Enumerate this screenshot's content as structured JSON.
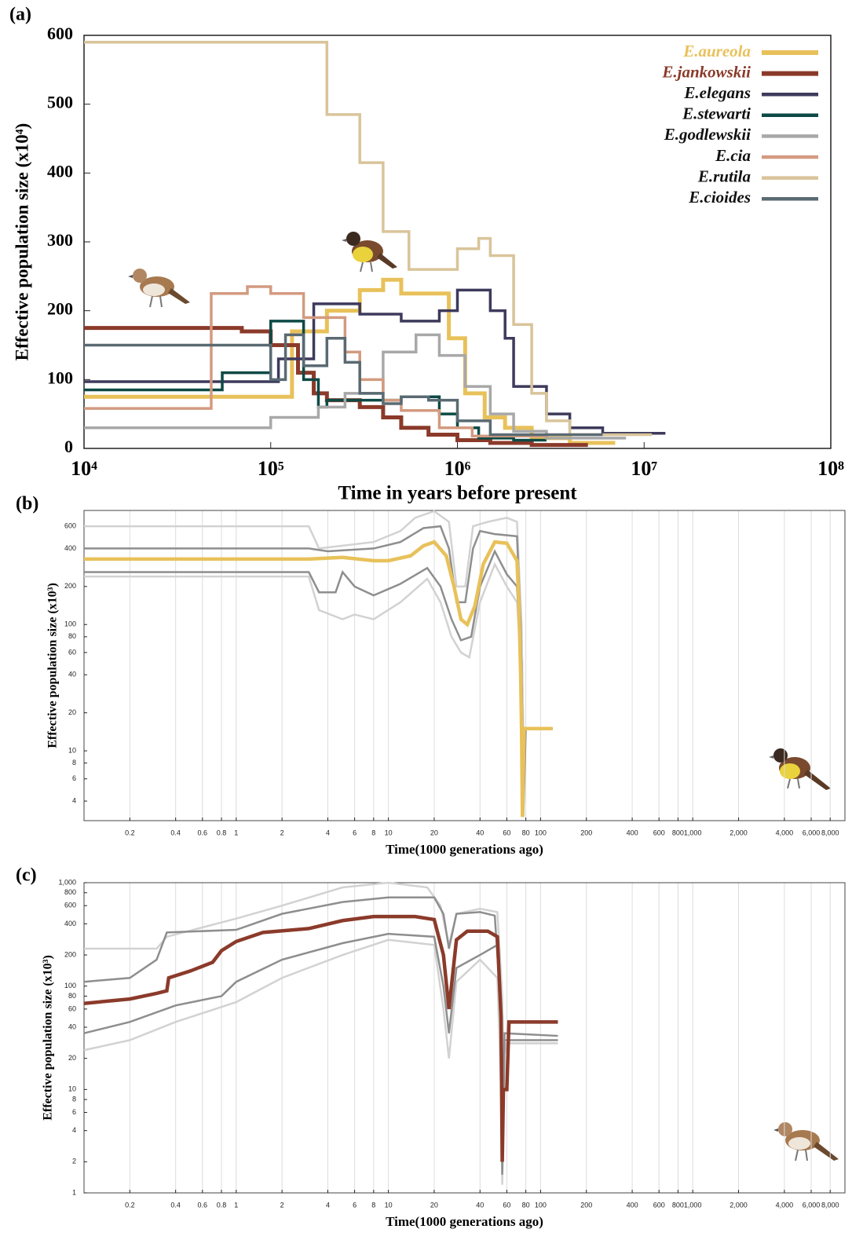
{
  "chart_data": [
    {
      "type": "step",
      "panel_label": "(a)",
      "x_label": "Time in years before present",
      "y_label": "Effective population size (x10⁴)",
      "x_scale": "log",
      "xlim": [
        10000,
        100000000
      ],
      "xticks": [
        {
          "value": 10000,
          "label": "10⁴"
        },
        {
          "value": 100000,
          "label": "10⁵"
        },
        {
          "value": 1000000,
          "label": "10⁶"
        },
        {
          "value": 10000000,
          "label": "10⁷"
        },
        {
          "value": 100000000,
          "label": "10⁸"
        }
      ],
      "ylim": [
        0,
        600
      ],
      "yticks": [
        0,
        100,
        200,
        300,
        400,
        500,
        600
      ],
      "grid": false,
      "legend": "upper right",
      "series": [
        {
          "name": "E.aureola",
          "color": "#e8c15a",
          "label_color": "#e8c15a",
          "width": 5,
          "x": [
            10000,
            130000,
            200000,
            300000,
            400000,
            500000,
            900000,
            1100000,
            1400000,
            1800000,
            2500000,
            4000000,
            7000000
          ],
          "values": [
            75,
            170,
            200,
            230,
            245,
            225,
            160,
            80,
            45,
            30,
            15,
            8,
            8
          ]
        },
        {
          "name": "E.jankowskii",
          "color": "#8b3a2a",
          "label_color": "#8b3a2a",
          "width": 5,
          "x": [
            10000,
            70000,
            100000,
            140000,
            170000,
            200000,
            300000,
            400000,
            500000,
            700000,
            1000000,
            1500000,
            2500000,
            5000000
          ],
          "values": [
            175,
            170,
            150,
            110,
            80,
            70,
            60,
            45,
            30,
            20,
            12,
            8,
            5,
            5
          ]
        },
        {
          "name": "E.elegans",
          "color": "#3d3a5c",
          "label_color": "#111111",
          "width": 3.5,
          "x": [
            10000,
            110000,
            170000,
            300000,
            500000,
            800000,
            1000000,
            1500000,
            1800000,
            2000000,
            3000000,
            4000000,
            6000000,
            13000000
          ],
          "values": [
            97,
            130,
            210,
            195,
            185,
            200,
            230,
            200,
            160,
            90,
            50,
            30,
            22,
            22
          ]
        },
        {
          "name": "E.stewarti",
          "color": "#0d4a45",
          "label_color": "#111111",
          "width": 3.5,
          "x": [
            10000,
            55000,
            100000,
            150000,
            180000,
            200000,
            500000,
            800000,
            1000000,
            1300000,
            2000000,
            3000000
          ],
          "values": [
            85,
            110,
            185,
            100,
            60,
            70,
            75,
            50,
            30,
            15,
            12,
            12
          ]
        },
        {
          "name": "E.godlewskii",
          "color": "#a8a8a8",
          "label_color": "#111111",
          "width": 3.5,
          "x": [
            10000,
            100000,
            180000,
            250000,
            400000,
            600000,
            800000,
            1100000,
            1500000,
            2000000,
            3000000,
            8000000
          ],
          "values": [
            30,
            45,
            60,
            80,
            140,
            165,
            135,
            90,
            50,
            25,
            15,
            15
          ]
        },
        {
          "name": "E.cia",
          "color": "#d39a80",
          "label_color": "#111111",
          "width": 3.5,
          "x": [
            10000,
            48000,
            75000,
            100000,
            150000,
            250000,
            300000,
            400000,
            500000,
            800000,
            1200000,
            3000000
          ],
          "values": [
            58,
            225,
            235,
            225,
            190,
            140,
            100,
            70,
            55,
            30,
            18,
            18
          ]
        },
        {
          "name": "E.rutila",
          "color": "#d9c49a",
          "label_color": "#111111",
          "width": 3.5,
          "x": [
            10000,
            200000,
            300000,
            400000,
            550000,
            1000000,
            1300000,
            1500000,
            2000000,
            2500000,
            3000000,
            4000000,
            11000000
          ],
          "values": [
            590,
            485,
            415,
            315,
            260,
            290,
            305,
            280,
            180,
            80,
            40,
            20,
            20
          ]
        },
        {
          "name": "E.cioides",
          "color": "#5a6a73",
          "label_color": "#111111",
          "width": 3.5,
          "x": [
            10000,
            100000,
            120000,
            150000,
            200000,
            250000,
            300000,
            400000,
            500000,
            700000,
            1000000,
            1500000,
            6000000
          ],
          "values": [
            150,
            100,
            165,
            120,
            160,
            125,
            80,
            65,
            75,
            70,
            40,
            20,
            20
          ]
        }
      ]
    },
    {
      "type": "line",
      "panel_label": "(b)",
      "x_label": "Time(1000 generations ago)",
      "y_label": "Effective population size (x10³)",
      "x_scale": "log",
      "y_scale": "log",
      "xlim": [
        0.1,
        10000
      ],
      "ylim": [
        2.8,
        800
      ],
      "grid": "x",
      "xticks": [
        0.2,
        0.4,
        0.6,
        0.8,
        1,
        2,
        4,
        6,
        8,
        10,
        20,
        40,
        60,
        80,
        100,
        200,
        400,
        600,
        800,
        {
          "value": 1000,
          "label": "1,000"
        },
        {
          "value": 2000,
          "label": "2,000"
        },
        {
          "value": 4000,
          "label": "4,000"
        },
        {
          "value": 6000,
          "label": "6,000"
        },
        {
          "value": 8000,
          "label": "8,000"
        }
      ],
      "yticks": [
        4,
        6,
        8,
        10,
        20,
        40,
        60,
        80,
        100,
        200,
        400,
        600
      ],
      "series": [
        {
          "color": "#d2d2d2",
          "width": 2.5,
          "x": [
            0.1,
            3,
            3.5,
            8,
            12,
            15,
            20,
            25,
            28,
            32,
            36,
            45,
            60,
            70,
            75,
            77,
            120
          ],
          "values": [
            600,
            600,
            400,
            450,
            550,
            700,
            790,
            650,
            200,
            200,
            600,
            650,
            700,
            650,
            100,
            15,
            15
          ]
        },
        {
          "color": "#d2d2d2",
          "width": 2.5,
          "x": [
            0.1,
            3,
            3.5,
            5,
            6,
            8,
            12,
            18,
            22,
            26,
            30,
            34,
            40,
            50,
            60,
            70,
            75,
            77,
            120
          ],
          "values": [
            240,
            240,
            130,
            110,
            120,
            110,
            150,
            230,
            150,
            80,
            60,
            55,
            150,
            300,
            200,
            150,
            40,
            15,
            15
          ]
        },
        {
          "color": "#8e8e8e",
          "width": 2.5,
          "x": [
            0.1,
            3,
            4,
            8,
            12,
            17,
            22,
            25,
            28,
            32,
            36,
            40,
            50,
            70,
            74,
            76,
            120
          ],
          "values": [
            400,
            400,
            380,
            400,
            450,
            580,
            600,
            400,
            150,
            150,
            400,
            550,
            520,
            500,
            100,
            15,
            15
          ]
        },
        {
          "color": "#8e8e8e",
          "width": 2.5,
          "x": [
            0.1,
            3,
            3.5,
            4.5,
            5,
            6,
            8,
            12,
            18,
            22,
            26,
            30,
            35,
            40,
            50,
            60,
            70,
            75,
            77,
            80,
            120
          ],
          "values": [
            260,
            260,
            180,
            180,
            260,
            200,
            170,
            210,
            280,
            200,
            110,
            75,
            80,
            200,
            380,
            250,
            200,
            50,
            3,
            15,
            15
          ]
        },
        {
          "color": "#e8c15a",
          "width": 4.5,
          "x": [
            0.1,
            3,
            5,
            8,
            10,
            14,
            17,
            20,
            24,
            27,
            30,
            33,
            37,
            42,
            50,
            60,
            70,
            72,
            74,
            75,
            76,
            78,
            120
          ],
          "values": [
            330,
            330,
            340,
            320,
            320,
            350,
            420,
            450,
            350,
            200,
            110,
            100,
            140,
            300,
            450,
            440,
            320,
            150,
            40,
            15,
            3,
            15,
            15
          ]
        }
      ]
    },
    {
      "type": "line",
      "panel_label": "(c)",
      "x_label": "Time(1000 generations ago)",
      "y_label": "Effective population size (x10³)",
      "x_scale": "log",
      "y_scale": "log",
      "xlim": [
        0.1,
        10000
      ],
      "ylim": [
        1,
        1000
      ],
      "grid": "x",
      "xticks": [
        0.2,
        0.4,
        0.6,
        0.8,
        1,
        2,
        4,
        6,
        8,
        10,
        20,
        40,
        60,
        80,
        100,
        200,
        400,
        600,
        800,
        {
          "value": 1000,
          "label": "1,000"
        },
        {
          "value": 2000,
          "label": "2,000"
        },
        {
          "value": 4000,
          "label": "4,000"
        },
        {
          "value": 6000,
          "label": "6,000"
        },
        {
          "value": 8000,
          "label": "8,000"
        }
      ],
      "yticks": [
        1,
        2,
        4,
        6,
        8,
        10,
        20,
        40,
        60,
        80,
        100,
        200,
        400,
        600,
        800,
        {
          "value": 1000,
          "label": "1,000"
        }
      ],
      "series": [
        {
          "color": "#d2d2d2",
          "width": 2.5,
          "x": [
            0.1,
            0.3,
            0.35,
            1,
            2,
            5,
            10,
            18,
            22,
            25,
            28,
            40,
            52,
            56,
            57,
            60,
            130
          ],
          "values": [
            230,
            230,
            300,
            450,
            600,
            900,
            1000,
            900,
            600,
            250,
            500,
            560,
            520,
            80,
            20,
            28,
            28
          ]
        },
        {
          "color": "#d2d2d2",
          "width": 2.5,
          "x": [
            0.1,
            0.2,
            0.4,
            1,
            2,
            5,
            10,
            20,
            23,
            25,
            28,
            40,
            52,
            55,
            56,
            58,
            130
          ],
          "values": [
            24,
            30,
            45,
            70,
            120,
            200,
            280,
            250,
            60,
            20,
            110,
            180,
            120,
            10,
            1.2,
            28,
            28
          ]
        },
        {
          "color": "#8e8e8e",
          "width": 2.5,
          "x": [
            0.1,
            0.2,
            0.3,
            0.35,
            1,
            2,
            5,
            10,
            20,
            23,
            25,
            28,
            40,
            50,
            55,
            56,
            58,
            130
          ],
          "values": [
            110,
            120,
            180,
            330,
            350,
            500,
            650,
            720,
            720,
            500,
            230,
            500,
            520,
            480,
            60,
            5,
            35,
            33
          ]
        },
        {
          "color": "#8e8e8e",
          "width": 2.5,
          "x": [
            0.1,
            0.2,
            0.4,
            0.8,
            1,
            2,
            5,
            10,
            20,
            23,
            25,
            28,
            40,
            52,
            55,
            56,
            58,
            130
          ],
          "values": [
            35,
            45,
            65,
            80,
            110,
            180,
            260,
            320,
            300,
            100,
            35,
            150,
            200,
            250,
            30,
            1.5,
            30,
            30
          ]
        },
        {
          "color": "#8b3a2a",
          "width": 4.5,
          "x": [
            0.1,
            0.2,
            0.3,
            0.35,
            0.36,
            0.5,
            0.7,
            0.8,
            1,
            1.5,
            3,
            5,
            8,
            15,
            20,
            23,
            25,
            28,
            33,
            45,
            52,
            55,
            56,
            57,
            60,
            62,
            130
          ],
          "values": [
            68,
            75,
            85,
            90,
            120,
            140,
            170,
            220,
            270,
            330,
            360,
            430,
            470,
            470,
            440,
            200,
            60,
            280,
            340,
            340,
            300,
            50,
            2,
            10,
            10,
            45,
            45
          ]
        }
      ]
    }
  ]
}
